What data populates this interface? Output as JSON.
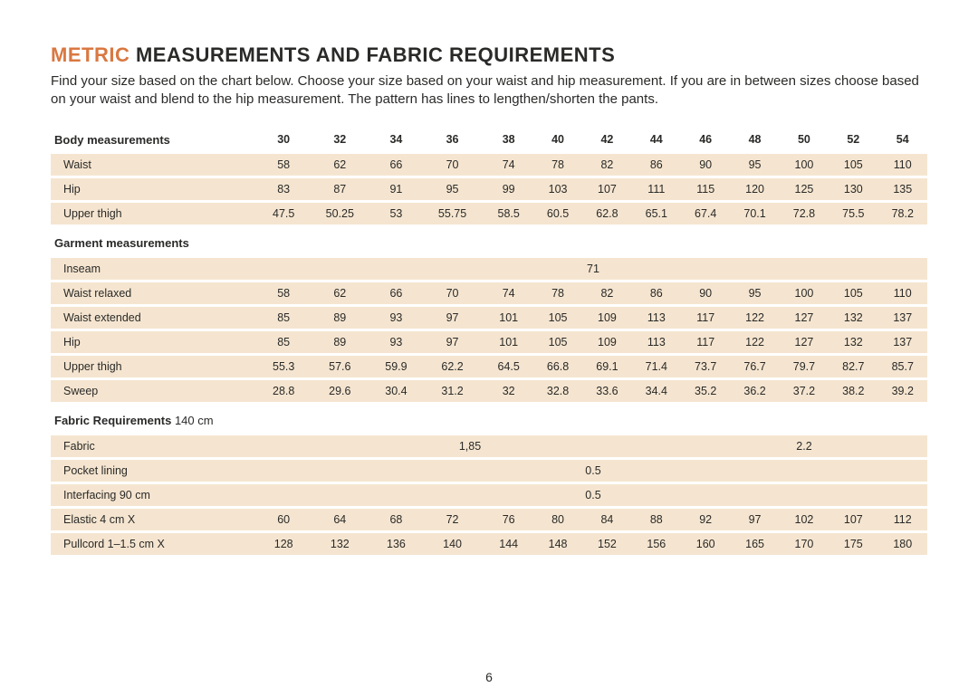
{
  "title_accent": "METRIC",
  "title_rest": " MEASUREMENTS AND FABRIC REQUIREMENTS",
  "intro": "Find your size based on the chart below. Choose your size based on your waist and hip measurement. If you are in between sizes choose based on your waist and blend to the hip measurement. The pattern has lines to lengthen/shorten the pants.",
  "page_number": "6",
  "colors": {
    "accent": "#d97841",
    "row_bg": "#f5e5d0",
    "text": "#2a2a28",
    "page_bg": "#ffffff"
  },
  "sizes": [
    "30",
    "32",
    "34",
    "36",
    "38",
    "40",
    "42",
    "44",
    "46",
    "48",
    "50",
    "52",
    "54"
  ],
  "sections": [
    {
      "title": "Body measurements",
      "is_header": true,
      "rows": [
        {
          "label": "Waist",
          "values": [
            "58",
            "62",
            "66",
            "70",
            "74",
            "78",
            "82",
            "86",
            "90",
            "95",
            "100",
            "105",
            "110"
          ]
        },
        {
          "label": "Hip",
          "values": [
            "83",
            "87",
            "91",
            "95",
            "99",
            "103",
            "107",
            "111",
            "115",
            "120",
            "125",
            "130",
            "135"
          ]
        },
        {
          "label": "Upper thigh",
          "values": [
            "47.5",
            "50.25",
            "53",
            "55.75",
            "58.5",
            "60.5",
            "62.8",
            "65.1",
            "67.4",
            "70.1",
            "72.8",
            "75.5",
            "78.2"
          ]
        }
      ]
    },
    {
      "title": "Garment measurements",
      "rows": [
        {
          "label": "Inseam",
          "span": {
            "value": "71",
            "cols": 13
          }
        },
        {
          "label": "Waist relaxed",
          "values": [
            "58",
            "62",
            "66",
            "70",
            "74",
            "78",
            "82",
            "86",
            "90",
            "95",
            "100",
            "105",
            "110"
          ]
        },
        {
          "label": "Waist extended",
          "values": [
            "85",
            "89",
            "93",
            "97",
            "101",
            "105",
            "109",
            "113",
            "117",
            "122",
            "127",
            "132",
            "137"
          ]
        },
        {
          "label": "Hip",
          "values": [
            "85",
            "89",
            "93",
            "97",
            "101",
            "105",
            "109",
            "113",
            "117",
            "122",
            "127",
            "132",
            "137"
          ]
        },
        {
          "label": "Upper thigh",
          "values": [
            "55.3",
            "57.6",
            "59.9",
            "62.2",
            "64.5",
            "66.8",
            "69.1",
            "71.4",
            "73.7",
            "76.7",
            "79.7",
            "82.7",
            "85.7"
          ]
        },
        {
          "label": "Sweep",
          "values": [
            "28.8",
            "29.6",
            "30.4",
            "31.2",
            "32",
            "32.8",
            "33.6",
            "34.4",
            "35.2",
            "36.2",
            "37.2",
            "38.2",
            "39.2"
          ]
        }
      ]
    },
    {
      "title": "Fabric Requirements",
      "title_sub": " 140 cm",
      "rows": [
        {
          "label": "Fabric",
          "spans": [
            {
              "value": "1,85",
              "cols": 8
            },
            {
              "value": "2.2",
              "cols": 5
            }
          ]
        },
        {
          "label": "Pocket lining",
          "span": {
            "value": "0.5",
            "cols": 13
          }
        },
        {
          "label": " Interfacing 90 cm",
          "span": {
            "value": "0.5",
            "cols": 13
          }
        },
        {
          "label": "Elastic 4 cm X",
          "values": [
            "60",
            "64",
            "68",
            "72",
            "76",
            "80",
            "84",
            "88",
            "92",
            "97",
            "102",
            "107",
            "112"
          ]
        },
        {
          "label": "Pullcord 1–1.5 cm X",
          "values": [
            "128",
            "132",
            "136",
            "140",
            "144",
            "148",
            "152",
            "156",
            "160",
            "165",
            "170",
            "175",
            "180"
          ]
        }
      ]
    }
  ]
}
